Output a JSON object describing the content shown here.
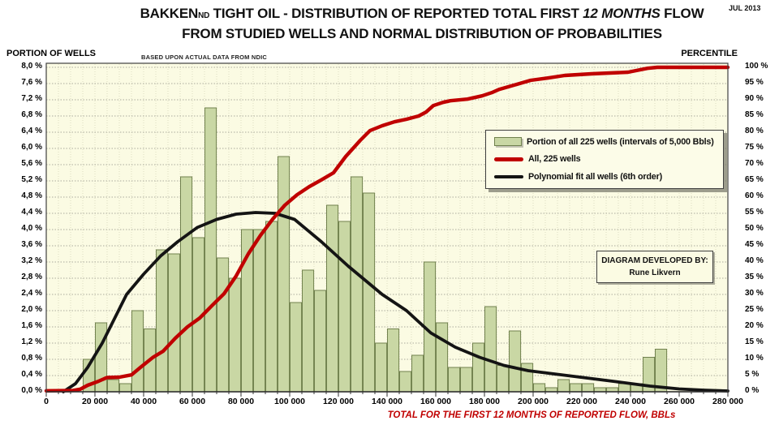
{
  "header": {
    "date": "JUL 2013",
    "title": {
      "brand": "BAKKEN",
      "brand_sub": "ND",
      "part1": " TIGHT OIL - DISTRIBUTION OF REPORTED TOTAL FIRST ",
      "emph": "12 MONTHS",
      "part2": " FLOW",
      "line2": "FROM STUDIED WELLS AND NORMAL DISTRIBUTION OF PROBABILITIES"
    }
  },
  "axes": {
    "left_header": "PORTION  OF WELLS",
    "left_subheader": "BASED UPON  ACTUAL DATA FROM NDIC",
    "right_header": "PERCENTILE",
    "x_title": "TOTAL  FOR THE FIRST 12 MONTHS OF REPORTED FLOW, BBLs",
    "left_tick_labels": [
      "8,0 %",
      "7,6 %",
      "7,2 %",
      "6,8 %",
      "6,4 %",
      "6,0 %",
      "5,6 %",
      "5,2 %",
      "4,8 %",
      "4,4 %",
      "4,0 %",
      "3,6 %",
      "3,2 %",
      "2,8 %",
      "2,4 %",
      "2,0 %",
      "1,6 %",
      "1,2 %",
      "0,8 %",
      "0,4 %",
      "0,0 %"
    ],
    "right_tick_labels": [
      "100 %",
      "95 %",
      "90 %",
      "85 %",
      "80 %",
      "75 %",
      "70 %",
      "65 %",
      "60 %",
      "55 %",
      "50 %",
      "45 %",
      "40 %",
      "35 %",
      "30 %",
      "25 %",
      "20 %",
      "15 %",
      "10 %",
      "5 %",
      "0 %"
    ],
    "x_tick_labels": [
      "0",
      "20 000",
      "40 000",
      "60 000",
      "80 000",
      "100 000",
      "120 000",
      "140 000",
      "160 000",
      "180 000",
      "200 000",
      "220 000",
      "240 000",
      "260 000",
      "280 000"
    ]
  },
  "legend": {
    "items": [
      {
        "label": "Portion of all 225 wells (intervals of 5,000 Bbls)",
        "marker": "bar-swatch"
      },
      {
        "label": "All, 225 wells",
        "marker": "red-line"
      },
      {
        "label": "Polynomial fit all wells (6th  order)",
        "marker": "black-line"
      }
    ]
  },
  "credit": {
    "line1": "DIAGRAM DEVELOPED BY:",
    "line2": "Rune Likvern"
  },
  "colors": {
    "plot_bg": "#FBFBE3",
    "bar_fill": "#C9D7A4",
    "bar_border": "#71814E",
    "grid": "#9C9C90",
    "grid_minor": "#DEDDC2",
    "red_line": "#C00000",
    "black_line": "#141414",
    "frame": "#3F3F3F",
    "axis_text": "#000000"
  },
  "chart_data": {
    "type": "bar",
    "title": "BAKKEN ND TIGHT OIL - DISTRIBUTION OF REPORTED TOTAL FIRST 12 MONTHS FLOW FROM STUDIED WELLS AND NORMAL DISTRIBUTION OF PROBABILITIES",
    "xlabel": "TOTAL FOR THE FIRST 12 MONTHS OF REPORTED FLOW, BBLs",
    "ylabel_left": "PORTION OF WELLS (%)",
    "ylabel_right": "PERCENTILE (%)",
    "x_range_bbls": [
      0,
      280000
    ],
    "left_axis": {
      "min": 0,
      "max": 8,
      "step": 0.4
    },
    "right_axis": {
      "min": 0,
      "max": 100,
      "step": 5
    },
    "bin_width_bbls": 5000,
    "bin_start_bbls": 0,
    "bars_percent": [
      0,
      0,
      0,
      0.8,
      1.7,
      0.3,
      0.2,
      2.0,
      1.55,
      3.5,
      3.4,
      5.3,
      3.8,
      7.0,
      3.3,
      2.8,
      4.0,
      4.0,
      4.2,
      5.8,
      2.2,
      3.0,
      2.5,
      4.6,
      4.2,
      5.3,
      4.9,
      1.2,
      1.55,
      0.5,
      0.9,
      3.2,
      1.7,
      0.6,
      0.6,
      1.2,
      2.1,
      0.65,
      1.5,
      0.7,
      0.2,
      0.1,
      0.3,
      0.2,
      0.2,
      0.1,
      0.1,
      0.2,
      0.2,
      0.85,
      1.05,
      0,
      0,
      0,
      0,
      0
    ],
    "series": [
      {
        "name": "Portion of all 225 wells (intervals of 5,000 Bbls)",
        "type": "bar",
        "axis": "left"
      },
      {
        "name": "All, 225 wells",
        "type": "line",
        "axis": "right",
        "points_kbbl_pct": [
          [
            0,
            0.3
          ],
          [
            11,
            0.4
          ],
          [
            14,
            0.8
          ],
          [
            17,
            2.0
          ],
          [
            21,
            3.1
          ],
          [
            25,
            4.4
          ],
          [
            30,
            4.5
          ],
          [
            35,
            5.2
          ],
          [
            39,
            7.7
          ],
          [
            44,
            10.7
          ],
          [
            48,
            12.5
          ],
          [
            53,
            16.5
          ],
          [
            58,
            20.0
          ],
          [
            63,
            22.7
          ],
          [
            68,
            26.5
          ],
          [
            73,
            30.2
          ],
          [
            78,
            35.7
          ],
          [
            83,
            42.5
          ],
          [
            88,
            48.2
          ],
          [
            93,
            53.2
          ],
          [
            98,
            57.5
          ],
          [
            103,
            60.7
          ],
          [
            108,
            63.2
          ],
          [
            113,
            65.3
          ],
          [
            118,
            67.5
          ],
          [
            123,
            72.5
          ],
          [
            129,
            77.5
          ],
          [
            133,
            80.5
          ],
          [
            138,
            82.0
          ],
          [
            143,
            83.2
          ],
          [
            148,
            84.0
          ],
          [
            153,
            85.0
          ],
          [
            156,
            86.2
          ],
          [
            159,
            88.2
          ],
          [
            163,
            89.2
          ],
          [
            166,
            89.7
          ],
          [
            173,
            90.2
          ],
          [
            179,
            91.2
          ],
          [
            183,
            92.2
          ],
          [
            186,
            93.2
          ],
          [
            193,
            94.7
          ],
          [
            199,
            96.0
          ],
          [
            206,
            96.7
          ],
          [
            213,
            97.5
          ],
          [
            224,
            98.0
          ],
          [
            239,
            98.5
          ],
          [
            247,
            99.7
          ],
          [
            251,
            100
          ],
          [
            280,
            100
          ]
        ]
      },
      {
        "name": "Polynomial fit all wells (6th order)",
        "type": "line",
        "axis": "left",
        "points_kbbl_pct": [
          [
            7,
            0
          ],
          [
            12,
            0.2
          ],
          [
            17,
            0.6
          ],
          [
            23,
            1.2
          ],
          [
            28,
            1.8
          ],
          [
            33,
            2.4
          ],
          [
            40,
            2.9
          ],
          [
            47,
            3.35
          ],
          [
            54,
            3.7
          ],
          [
            62,
            4.05
          ],
          [
            70,
            4.25
          ],
          [
            78,
            4.38
          ],
          [
            86,
            4.42
          ],
          [
            94,
            4.4
          ],
          [
            102,
            4.25
          ],
          [
            113,
            3.7
          ],
          [
            124,
            3.1
          ],
          [
            131,
            2.75
          ],
          [
            138,
            2.4
          ],
          [
            148,
            2.0
          ],
          [
            158,
            1.45
          ],
          [
            168,
            1.1
          ],
          [
            178,
            0.85
          ],
          [
            188,
            0.65
          ],
          [
            198,
            0.52
          ],
          [
            214,
            0.4
          ],
          [
            234,
            0.25
          ],
          [
            248,
            0.14
          ],
          [
            260,
            0.07
          ],
          [
            270,
            0.04
          ],
          [
            280,
            0.02
          ]
        ]
      }
    ]
  }
}
